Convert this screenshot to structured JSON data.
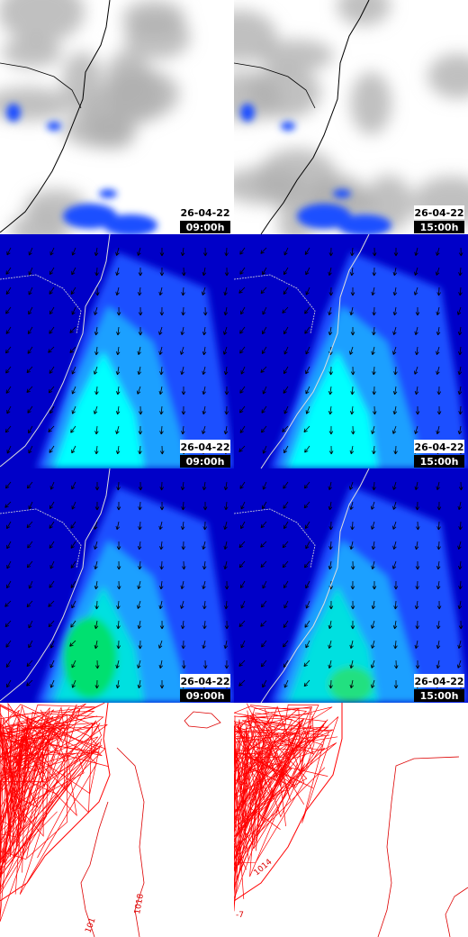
{
  "panels": [
    {
      "date": "26-04-22",
      "time": "09:00h"
    },
    {
      "date": "26-04-22",
      "time": "15:00h"
    },
    {
      "date": "26-04-22",
      "time": "09:00h"
    },
    {
      "date": "26-04-22",
      "time": "15:00h"
    },
    {
      "date": "26-04-22",
      "time": "09:00h"
    },
    {
      "date": "26-04-22",
      "time": "15:00h"
    }
  ],
  "contour_labels": [
    "1018",
    "101",
    "1014",
    "-7"
  ]
}
